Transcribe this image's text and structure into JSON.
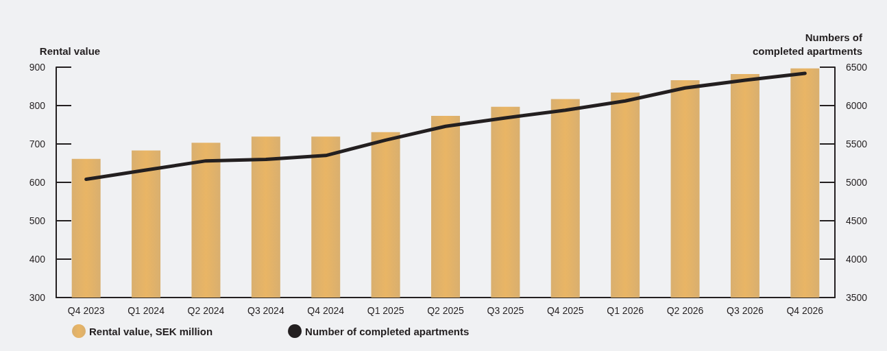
{
  "chart_data": {
    "type": "bar",
    "ylabel": "Rental value",
    "y2label": "Numbers of\ncompleted apartments",
    "categories": [
      "Q4 2023",
      "Q1 2024",
      "Q2 2024",
      "Q3 2024",
      "Q4 2024",
      "Q1 2025",
      "Q2 2025",
      "Q3 2025",
      "Q4 2025",
      "Q1 2026",
      "Q2 2026",
      "Q3 2026",
      "Q4 2026"
    ],
    "series": [
      {
        "name": "Rental value, SEK million",
        "color": "#d4a55c",
        "values": [
          661,
          683,
          703,
          719,
          719,
          731,
          773,
          797,
          817,
          834,
          866,
          882,
          897
        ]
      },
      {
        "name": "Number of completed apartments",
        "type": "line",
        "axis": "y2",
        "color": "#231f20",
        "values": [
          5040,
          5160,
          5280,
          5300,
          5350,
          5550,
          5730,
          5840,
          5940,
          6060,
          6230,
          6330,
          6420
        ]
      }
    ],
    "ylim": [
      300,
      900
    ],
    "yticks": [
      300,
      400,
      500,
      600,
      700,
      800,
      900
    ],
    "y2lim": [
      3500,
      6500
    ],
    "y2ticks": [
      3500,
      4000,
      4500,
      5000,
      5500,
      6000,
      6500
    ],
    "grid": false,
    "legend": "bottom left",
    "marker": "none",
    "line_style": "solid"
  }
}
